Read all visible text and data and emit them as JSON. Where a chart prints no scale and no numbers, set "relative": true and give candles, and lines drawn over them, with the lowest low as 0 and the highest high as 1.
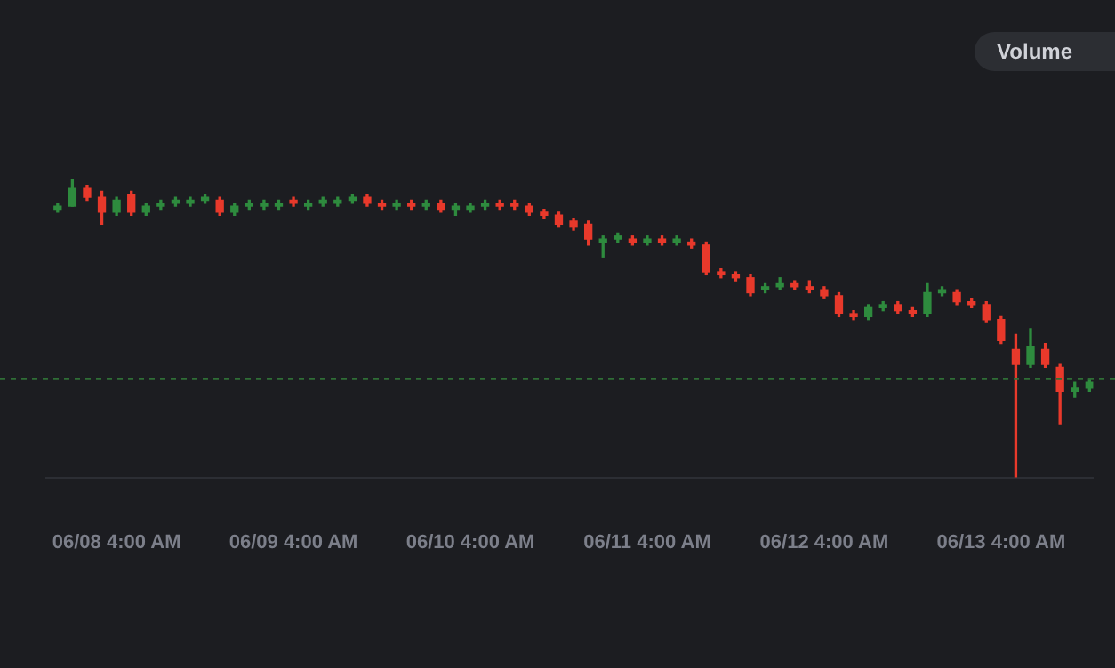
{
  "chart_data": {
    "type": "candlestick",
    "relative": true,
    "x": [
      "--06-07T20:00",
      "--06-07T22:00",
      "--06-08T00:00",
      "--06-08T02:00",
      "--06-08T04:00",
      "--06-08T06:00",
      "--06-08T08:00",
      "--06-08T10:00",
      "--06-08T12:00",
      "--06-08T14:00",
      "--06-08T16:00",
      "--06-08T18:00",
      "--06-08T20:00",
      "--06-08T22:00",
      "--06-09T00:00",
      "--06-09T02:00",
      "--06-09T04:00",
      "--06-09T06:00",
      "--06-09T08:00",
      "--06-09T10:00",
      "--06-09T12:00",
      "--06-09T14:00",
      "--06-09T16:00",
      "--06-09T18:00",
      "--06-09T20:00",
      "--06-09T22:00",
      "--06-10T00:00",
      "--06-10T02:00",
      "--06-10T04:00",
      "--06-10T06:00",
      "--06-10T08:00",
      "--06-10T10:00",
      "--06-10T12:00",
      "--06-10T14:00",
      "--06-10T16:00",
      "--06-10T18:00",
      "--06-10T20:00",
      "--06-10T22:00",
      "--06-11T00:00",
      "--06-11T02:00",
      "--06-11T04:00",
      "--06-11T06:00",
      "--06-11T08:00",
      "--06-11T10:00",
      "--06-11T12:00",
      "--06-11T14:00",
      "--06-11T16:00",
      "--06-11T18:00",
      "--06-11T20:00",
      "--06-11T22:00",
      "--06-12T00:00",
      "--06-12T02:00",
      "--06-12T04:00",
      "--06-12T06:00",
      "--06-12T08:00",
      "--06-12T10:00",
      "--06-12T12:00",
      "--06-12T14:00",
      "--06-12T16:00",
      "--06-12T18:00",
      "--06-12T20:00",
      "--06-12T22:00",
      "--06-13T00:00",
      "--06-13T02:00",
      "--06-13T04:00",
      "--06-13T06:00",
      "--06-13T08:00",
      "--06-13T10:00",
      "--06-13T12:00",
      "--06-13T14:00",
      "--06-13T16:00"
    ],
    "ohlc": [
      [
        0.9,
        0.92,
        0.89,
        0.91
      ],
      [
        0.91,
        1,
        0.91,
        0.97
      ],
      [
        0.97,
        0.98,
        0.93,
        0.94
      ],
      [
        0.94,
        0.96,
        0.85,
        0.89
      ],
      [
        0.89,
        0.94,
        0.88,
        0.93
      ],
      [
        0.95,
        0.96,
        0.88,
        0.89
      ],
      [
        0.89,
        0.92,
        0.88,
        0.91
      ],
      [
        0.91,
        0.93,
        0.9,
        0.92
      ],
      [
        0.92,
        0.94,
        0.91,
        0.93
      ],
      [
        0.92,
        0.94,
        0.91,
        0.93
      ],
      [
        0.93,
        0.95,
        0.92,
        0.94
      ],
      [
        0.93,
        0.94,
        0.88,
        0.89
      ],
      [
        0.89,
        0.92,
        0.88,
        0.91
      ],
      [
        0.91,
        0.93,
        0.9,
        0.92
      ],
      [
        0.91,
        0.93,
        0.9,
        0.92
      ],
      [
        0.91,
        0.93,
        0.9,
        0.92
      ],
      [
        0.93,
        0.94,
        0.91,
        0.92
      ],
      [
        0.91,
        0.93,
        0.9,
        0.92
      ],
      [
        0.92,
        0.94,
        0.91,
        0.93
      ],
      [
        0.92,
        0.94,
        0.91,
        0.93
      ],
      [
        0.93,
        0.95,
        0.92,
        0.94
      ],
      [
        0.94,
        0.95,
        0.91,
        0.92
      ],
      [
        0.92,
        0.93,
        0.9,
        0.91
      ],
      [
        0.91,
        0.93,
        0.9,
        0.92
      ],
      [
        0.92,
        0.93,
        0.9,
        0.91
      ],
      [
        0.91,
        0.93,
        0.9,
        0.92
      ],
      [
        0.92,
        0.93,
        0.89,
        0.9
      ],
      [
        0.9,
        0.92,
        0.88,
        0.91
      ],
      [
        0.9,
        0.92,
        0.89,
        0.91
      ],
      [
        0.91,
        0.93,
        0.9,
        0.92
      ],
      [
        0.92,
        0.93,
        0.9,
        0.91
      ],
      [
        0.92,
        0.93,
        0.9,
        0.91
      ],
      [
        0.91,
        0.92,
        0.88,
        0.89
      ],
      [
        0.89,
        0.9,
        0.87,
        0.88
      ],
      [
        0.88,
        0.89,
        0.84,
        0.85
      ],
      [
        0.86,
        0.87,
        0.83,
        0.84
      ],
      [
        0.85,
        0.86,
        0.78,
        0.8
      ],
      [
        0.79,
        0.81,
        0.74,
        0.8
      ],
      [
        0.8,
        0.82,
        0.79,
        0.81
      ],
      [
        0.8,
        0.81,
        0.78,
        0.79
      ],
      [
        0.79,
        0.81,
        0.78,
        0.8
      ],
      [
        0.8,
        0.81,
        0.78,
        0.79
      ],
      [
        0.79,
        0.81,
        0.78,
        0.8
      ],
      [
        0.79,
        0.8,
        0.77,
        0.78
      ],
      [
        0.78,
        0.79,
        0.68,
        0.69
      ],
      [
        0.69,
        0.7,
        0.67,
        0.68
      ],
      [
        0.68,
        0.69,
        0.66,
        0.67
      ],
      [
        0.67,
        0.68,
        0.61,
        0.62
      ],
      [
        0.63,
        0.65,
        0.62,
        0.64
      ],
      [
        0.64,
        0.67,
        0.63,
        0.65
      ],
      [
        0.65,
        0.66,
        0.63,
        0.64
      ],
      [
        0.64,
        0.66,
        0.62,
        0.63
      ],
      [
        0.63,
        0.64,
        0.6,
        0.61
      ],
      [
        0.61,
        0.62,
        0.54,
        0.55
      ],
      [
        0.55,
        0.56,
        0.53,
        0.54
      ],
      [
        0.54,
        0.58,
        0.53,
        0.57
      ],
      [
        0.57,
        0.59,
        0.56,
        0.58
      ],
      [
        0.58,
        0.59,
        0.55,
        0.56
      ],
      [
        0.56,
        0.57,
        0.54,
        0.55
      ],
      [
        0.55,
        0.65,
        0.54,
        0.62
      ],
      [
        0.62,
        0.64,
        0.61,
        0.63
      ],
      [
        0.62,
        0.63,
        0.58,
        0.59
      ],
      [
        0.59,
        0.6,
        0.57,
        0.58
      ],
      [
        0.58,
        0.59,
        0.52,
        0.53
      ],
      [
        0.53,
        0.54,
        0.45,
        0.46
      ],
      [
        0.43,
        0.48,
        0,
        0.38
      ],
      [
        0.38,
        0.5,
        0.37,
        0.44
      ],
      [
        0.43,
        0.45,
        0.37,
        0.38
      ],
      [
        0.37,
        0.38,
        0.18,
        0.29
      ],
      [
        0.29,
        0.32,
        0.27,
        0.3
      ],
      [
        0.3,
        0.33,
        0.29,
        0.32
      ]
    ],
    "colors": [
      "#2e8b3e",
      "#2e8b3e",
      "#e8392b",
      "#e8392b",
      "#2e8b3e",
      "#e8392b",
      "#2e8b3e",
      "#2e8b3e",
      "#2e8b3e",
      "#2e8b3e",
      "#2e8b3e",
      "#e8392b",
      "#2e8b3e",
      "#2e8b3e",
      "#2e8b3e",
      "#2e8b3e",
      "#e8392b",
      "#2e8b3e",
      "#2e8b3e",
      "#2e8b3e",
      "#2e8b3e",
      "#e8392b",
      "#e8392b",
      "#2e8b3e",
      "#e8392b",
      "#2e8b3e",
      "#e8392b",
      "#2e8b3e",
      "#2e8b3e",
      "#2e8b3e",
      "#e8392b",
      "#e8392b",
      "#e8392b",
      "#e8392b",
      "#e8392b",
      "#e8392b",
      "#e8392b",
      "#2e8b3e",
      "#2e8b3e",
      "#e8392b",
      "#2e8b3e",
      "#e8392b",
      "#2e8b3e",
      "#e8392b",
      "#e8392b",
      "#e8392b",
      "#e8392b",
      "#e8392b",
      "#2e8b3e",
      "#2e8b3e",
      "#e8392b",
      "#e8392b",
      "#e8392b",
      "#e8392b",
      "#e8392b",
      "#2e8b3e",
      "#2e8b3e",
      "#e8392b",
      "#e8392b",
      "#2e8b3e",
      "#2e8b3e",
      "#e8392b",
      "#e8392b",
      "#e8392b",
      "#e8392b",
      "#e8392b",
      "#2e8b3e",
      "#e8392b",
      "#e8392b",
      "#2e8b3e",
      "#2e8b3e"
    ],
    "xlim": [
      "--06-07T18:30",
      "--06-13T16:30"
    ],
    "xticks": [
      {
        "value": "--06-08T04:00",
        "label": "06/08 4:00 AM"
      },
      {
        "value": "--06-09T04:00",
        "label": "06/09 4:00 AM"
      },
      {
        "value": "--06-10T04:00",
        "label": "06/10 4:00 AM"
      },
      {
        "value": "--06-11T04:00",
        "label": "06/11 4:00 AM"
      },
      {
        "value": "--06-12T04:00",
        "label": "06/12 4:00 AM"
      },
      {
        "value": "--06-13T04:00",
        "label": "06/13 4:00 AM"
      }
    ],
    "ref_lines": [
      {
        "axis": "y",
        "value": 0.33,
        "label": null,
        "color": "#2f6e36",
        "line_style": "dashed"
      }
    ],
    "annotations": [
      "Volume"
    ],
    "grid": false,
    "legend": false
  }
}
